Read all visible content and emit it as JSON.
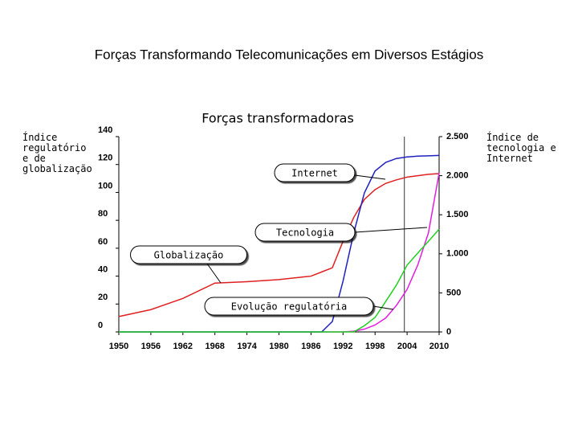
{
  "page_title": "Forças Transformando Telecomunicações em Diversos Estágios",
  "chart_data": {
    "type": "line",
    "title": "Forças transformadoras",
    "y_label": "Índice regulatório e de globalização",
    "y2_label": "Índice de tecnologia e Internet",
    "x": [
      1950,
      1956,
      1962,
      1968,
      1974,
      1980,
      1986,
      1988,
      1990,
      1992,
      1994,
      1996,
      1998,
      2000,
      2002,
      2004,
      2006,
      2008,
      2010
    ],
    "xlim": [
      1950,
      2010
    ],
    "xticks": [
      1950,
      1956,
      1962,
      1968,
      1974,
      1980,
      1986,
      1992,
      1998,
      2004,
      2010
    ],
    "ylim": [
      0,
      140
    ],
    "yticks": [
      0,
      20,
      40,
      60,
      80,
      100,
      120,
      140
    ],
    "y2lim": [
      0,
      2500
    ],
    "y2ticks": [
      0,
      500,
      {
        "value": 1000,
        "label": "1.000"
      },
      {
        "value": 1500,
        "label": "1.500"
      },
      {
        "value": 2000,
        "label": "2.000"
      },
      {
        "value": 2500,
        "label": "2.500"
      }
    ],
    "vline_x": 2003.5,
    "series": [
      {
        "name": "Globalização",
        "color": "#e02020",
        "axis": "y",
        "values": [
          11,
          16,
          24,
          35,
          36,
          37.5,
          40,
          43,
          46,
          65,
          82,
          95,
          102,
          106.5,
          109,
          111,
          112,
          113,
          113.5
        ]
      },
      {
        "name": "Evolução regulatória",
        "color": "#e020e0",
        "axis": "y",
        "values": [
          0,
          0,
          0,
          0,
          0,
          0,
          0,
          0,
          0,
          0,
          0.5,
          2,
          5,
          10,
          19,
          30.5,
          48,
          71,
          114
        ]
      },
      {
        "name": "Internet",
        "color": "#2020c0",
        "axis": "y2",
        "values": [
          0,
          0,
          0,
          0,
          0,
          0,
          0,
          0,
          134,
          650,
          1265,
          1780,
          2060,
          2170,
          2220,
          2240,
          2250,
          2255,
          2260
        ]
      },
      {
        "name": "Tecnologia",
        "color": "#20d020",
        "axis": "y2",
        "values": [
          0,
          0,
          0,
          0,
          0,
          0,
          0,
          0,
          0,
          0,
          0,
          80,
          185,
          390,
          600,
          855,
          1010,
          1160,
          1315
        ]
      }
    ]
  }
}
